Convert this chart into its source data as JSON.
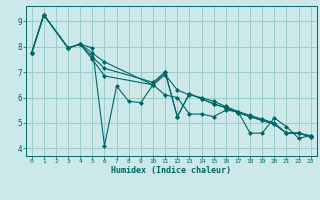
{
  "xlabel": "Humidex (Indice chaleur)",
  "background_color": "#cce8e8",
  "grid_color": "#99cccc",
  "line_color": "#006666",
  "marker_color": "#006666",
  "xlim": [
    -0.5,
    23.5
  ],
  "ylim": [
    3.7,
    9.6
  ],
  "yticks": [
    4,
    5,
    6,
    7,
    8,
    9
  ],
  "xticks": [
    0,
    1,
    2,
    3,
    4,
    5,
    6,
    7,
    8,
    9,
    10,
    11,
    12,
    13,
    14,
    15,
    16,
    17,
    18,
    19,
    20,
    21,
    22,
    23
  ],
  "series": [
    {
      "x": [
        0,
        1,
        3,
        4,
        5,
        6,
        7,
        8,
        9,
        10,
        11,
        12,
        13,
        14,
        15,
        16,
        17,
        18,
        19,
        20,
        21,
        22,
        23
      ],
      "y": [
        7.75,
        9.25,
        7.95,
        8.1,
        7.95,
        4.1,
        6.45,
        5.85,
        5.8,
        6.5,
        6.1,
        6.0,
        5.35,
        5.35,
        5.25,
        5.5,
        5.45,
        4.6,
        4.6,
        5.2,
        4.85,
        4.4,
        4.5
      ]
    },
    {
      "x": [
        0,
        1,
        3,
        4,
        5,
        6,
        10,
        11,
        12,
        13,
        14,
        15,
        16,
        17,
        18,
        19,
        20,
        21,
        22,
        23
      ],
      "y": [
        7.75,
        9.25,
        7.95,
        8.1,
        7.75,
        7.4,
        6.5,
        6.9,
        6.3,
        6.1,
        6.0,
        5.85,
        5.65,
        5.45,
        5.3,
        5.15,
        5.0,
        4.6,
        4.6,
        4.5
      ]
    },
    {
      "x": [
        0,
        1,
        3,
        4,
        5,
        6,
        10,
        11,
        12,
        13,
        14,
        15,
        16,
        17,
        18,
        19,
        20,
        21,
        22,
        23
      ],
      "y": [
        7.75,
        9.25,
        7.95,
        8.1,
        7.6,
        7.15,
        6.6,
        7.0,
        5.25,
        6.15,
        5.95,
        5.75,
        5.6,
        5.4,
        5.25,
        5.1,
        4.95,
        4.6,
        4.6,
        4.45
      ]
    },
    {
      "x": [
        0,
        1,
        3,
        4,
        5,
        6,
        10,
        11,
        12,
        13,
        14,
        15,
        16,
        17,
        18,
        19,
        20,
        21,
        22,
        23
      ],
      "y": [
        7.75,
        9.25,
        7.95,
        8.1,
        7.5,
        6.85,
        6.5,
        7.0,
        5.25,
        6.15,
        5.95,
        5.75,
        5.6,
        5.4,
        5.25,
        5.1,
        4.95,
        4.6,
        4.6,
        4.45
      ]
    }
  ]
}
